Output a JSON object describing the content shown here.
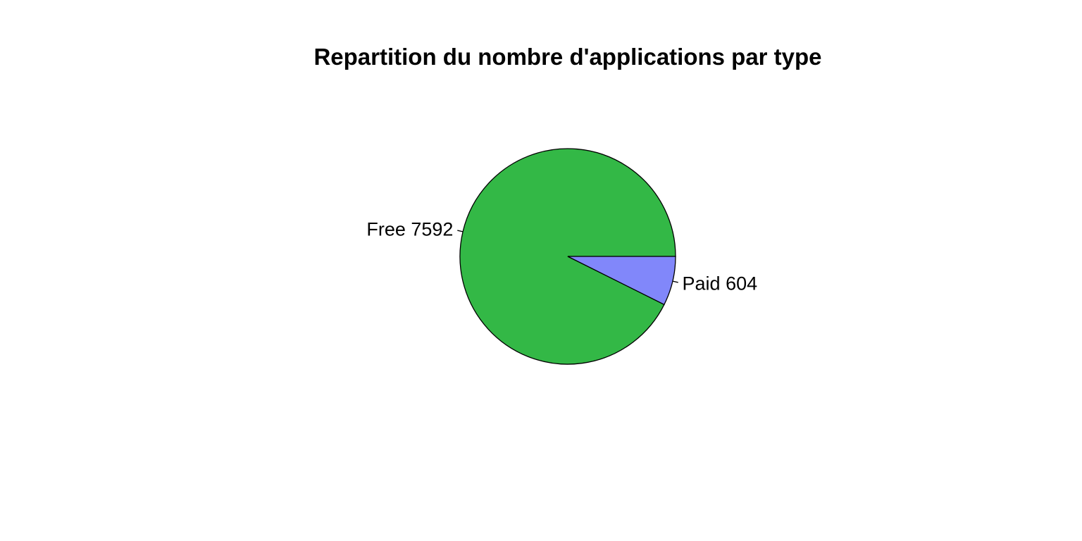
{
  "chart_data": {
    "type": "pie",
    "title": "Repartition du nombre d'applications par type",
    "slices": [
      {
        "category": "Free",
        "value": 7592,
        "label": "Free 7592",
        "color": "#33B846"
      },
      {
        "category": "Paid",
        "value": 604,
        "label": "Paid 604",
        "color": "#8187FA"
      }
    ],
    "start_angle_deg": 0,
    "direction": "counterclockwise",
    "border_color": "#000000"
  }
}
